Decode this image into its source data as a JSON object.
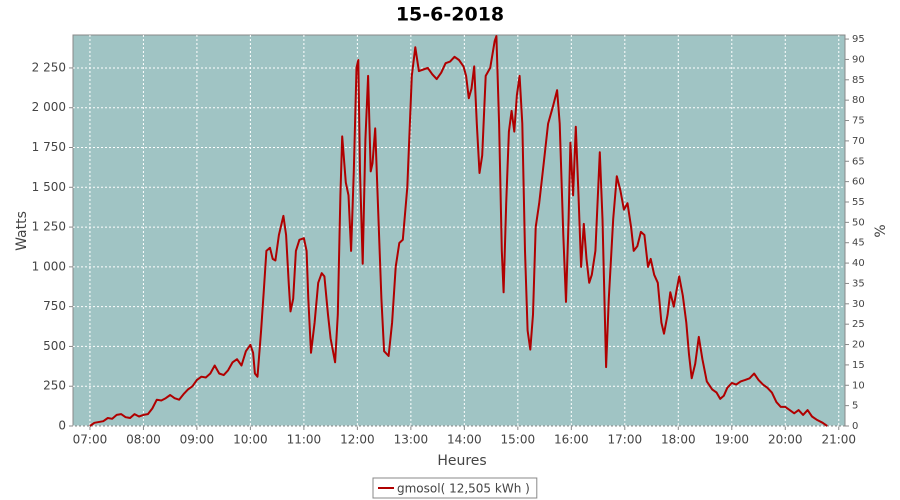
{
  "chart_data": {
    "type": "line",
    "title": "15-6-2018",
    "xlabel": "Heures",
    "ylabel": "Watts",
    "y2label": "%",
    "grid": true,
    "legend": "bottom",
    "xlim": [
      401,
      1267
    ],
    "xticks": [
      {
        "value": 420,
        "label": "07:00"
      },
      {
        "value": 480,
        "label": "08:00"
      },
      {
        "value": 540,
        "label": "09:00"
      },
      {
        "value": 600,
        "label": "10:00"
      },
      {
        "value": 660,
        "label": "11:00"
      },
      {
        "value": 720,
        "label": "12:00"
      },
      {
        "value": 780,
        "label": "13:00"
      },
      {
        "value": 840,
        "label": "14:00"
      },
      {
        "value": 900,
        "label": "15:00"
      },
      {
        "value": 960,
        "label": "16:00"
      },
      {
        "value": 1020,
        "label": "17:00"
      },
      {
        "value": 1080,
        "label": "18:00"
      },
      {
        "value": 1140,
        "label": "19:00"
      },
      {
        "value": 1200,
        "label": "20:00"
      },
      {
        "value": 1260,
        "label": "21:00"
      }
    ],
    "ylim": [
      0,
      2457
    ],
    "yticks": [
      0,
      250,
      500,
      750,
      {
        "value": 1000,
        "label": "1 000"
      },
      {
        "value": 1250,
        "label": "1 250"
      },
      {
        "value": 1500,
        "label": "1 500"
      },
      {
        "value": 1750,
        "label": "1 750"
      },
      {
        "value": 2000,
        "label": "2 000"
      },
      {
        "value": 2250,
        "label": "2 250"
      }
    ],
    "y2lim": [
      0,
      96
    ],
    "y2ticks": [
      0,
      5,
      10,
      15,
      20,
      25,
      30,
      35,
      40,
      45,
      50,
      55,
      60,
      65,
      70,
      75,
      80,
      85,
      90,
      95
    ],
    "x": [
      420,
      425,
      435,
      440,
      445,
      450,
      455,
      460,
      465,
      470,
      475,
      480,
      485,
      490,
      495,
      500,
      505,
      510,
      515,
      520,
      525,
      530,
      535,
      540,
      545,
      550,
      555,
      560,
      565,
      570,
      575,
      580,
      585,
      590,
      595,
      600,
      603,
      605,
      608,
      612,
      615,
      618,
      622,
      625,
      628,
      632,
      637,
      640,
      643,
      645,
      648,
      651,
      655,
      660,
      663,
      665,
      668,
      672,
      676,
      680,
      683,
      687,
      690,
      695,
      698,
      701,
      703,
      707,
      710,
      713,
      716,
      719,
      721,
      723,
      726,
      729,
      732,
      735,
      737,
      740,
      743,
      747,
      750,
      755,
      759,
      763,
      767,
      771,
      776,
      781,
      785,
      789,
      794,
      799,
      804,
      809,
      814,
      819,
      824,
      829,
      834,
      839,
      842,
      845,
      848,
      851,
      854,
      857,
      860,
      864,
      869,
      874,
      876,
      879,
      882,
      884,
      887,
      890,
      893,
      896,
      899,
      902,
      905,
      908,
      911,
      914,
      917,
      920,
      924,
      929,
      934,
      939,
      944,
      947,
      951,
      954,
      957,
      959,
      962,
      965,
      968,
      971,
      974,
      977,
      980,
      983,
      987,
      992,
      995,
      999,
      1002,
      1007,
      1011,
      1015,
      1019,
      1023,
      1027,
      1030,
      1034,
      1038,
      1042,
      1046,
      1049,
      1053,
      1057,
      1061,
      1064,
      1068,
      1071,
      1075,
      1078,
      1081,
      1085,
      1089,
      1092,
      1095,
      1099,
      1103,
      1107,
      1112,
      1118,
      1123,
      1127,
      1131,
      1135,
      1140,
      1145,
      1150,
      1155,
      1160,
      1165,
      1170,
      1175,
      1180,
      1185,
      1190,
      1195,
      1200,
      1205,
      1210,
      1215,
      1220,
      1225,
      1230,
      1235,
      1242,
      1247
    ],
    "series": [
      {
        "name": "gmosol( 12,505 kWh )",
        "color": "#b00000",
        "values": [
          0,
          20,
          30,
          50,
          45,
          70,
          75,
          55,
          50,
          75,
          60,
          70,
          75,
          110,
          165,
          160,
          175,
          195,
          175,
          165,
          200,
          230,
          250,
          290,
          310,
          305,
          330,
          380,
          330,
          320,
          350,
          400,
          420,
          380,
          470,
          510,
          460,
          330,
          310,
          600,
          850,
          1100,
          1120,
          1050,
          1040,
          1200,
          1320,
          1200,
          900,
          720,
          800,
          1100,
          1170,
          1180,
          1100,
          800,
          460,
          650,
          900,
          960,
          940,
          700,
          550,
          400,
          700,
          1450,
          1820,
          1530,
          1450,
          1100,
          1600,
          2250,
          2300,
          1600,
          1020,
          1800,
          2200,
          1600,
          1650,
          1870,
          1400,
          800,
          470,
          440,
          650,
          1000,
          1150,
          1170,
          1500,
          2200,
          2380,
          2230,
          2240,
          2250,
          2210,
          2180,
          2220,
          2280,
          2290,
          2320,
          2300,
          2260,
          2200,
          2060,
          2120,
          2260,
          1900,
          1590,
          1700,
          2200,
          2250,
          2420,
          2450,
          1900,
          1100,
          840,
          1400,
          1850,
          1980,
          1850,
          2080,
          2200,
          1900,
          1100,
          600,
          480,
          700,
          1250,
          1400,
          1650,
          1900,
          2000,
          2110,
          1900,
          1200,
          780,
          1300,
          1780,
          1450,
          1880,
          1450,
          1000,
          1270,
          1050,
          900,
          950,
          1100,
          1720,
          1300,
          370,
          800,
          1300,
          1570,
          1480,
          1360,
          1400,
          1250,
          1100,
          1130,
          1220,
          1200,
          1000,
          1050,
          950,
          900,
          650,
          580,
          700,
          840,
          750,
          850,
          940,
          820,
          650,
          450,
          300,
          390,
          560,
          420,
          280,
          230,
          210,
          170,
          190,
          240,
          270,
          260,
          280,
          290,
          300,
          330,
          290,
          260,
          240,
          210,
          150,
          120,
          120,
          100,
          80,
          100,
          70,
          100,
          60,
          40,
          20,
          0
        ]
      }
    ]
  }
}
